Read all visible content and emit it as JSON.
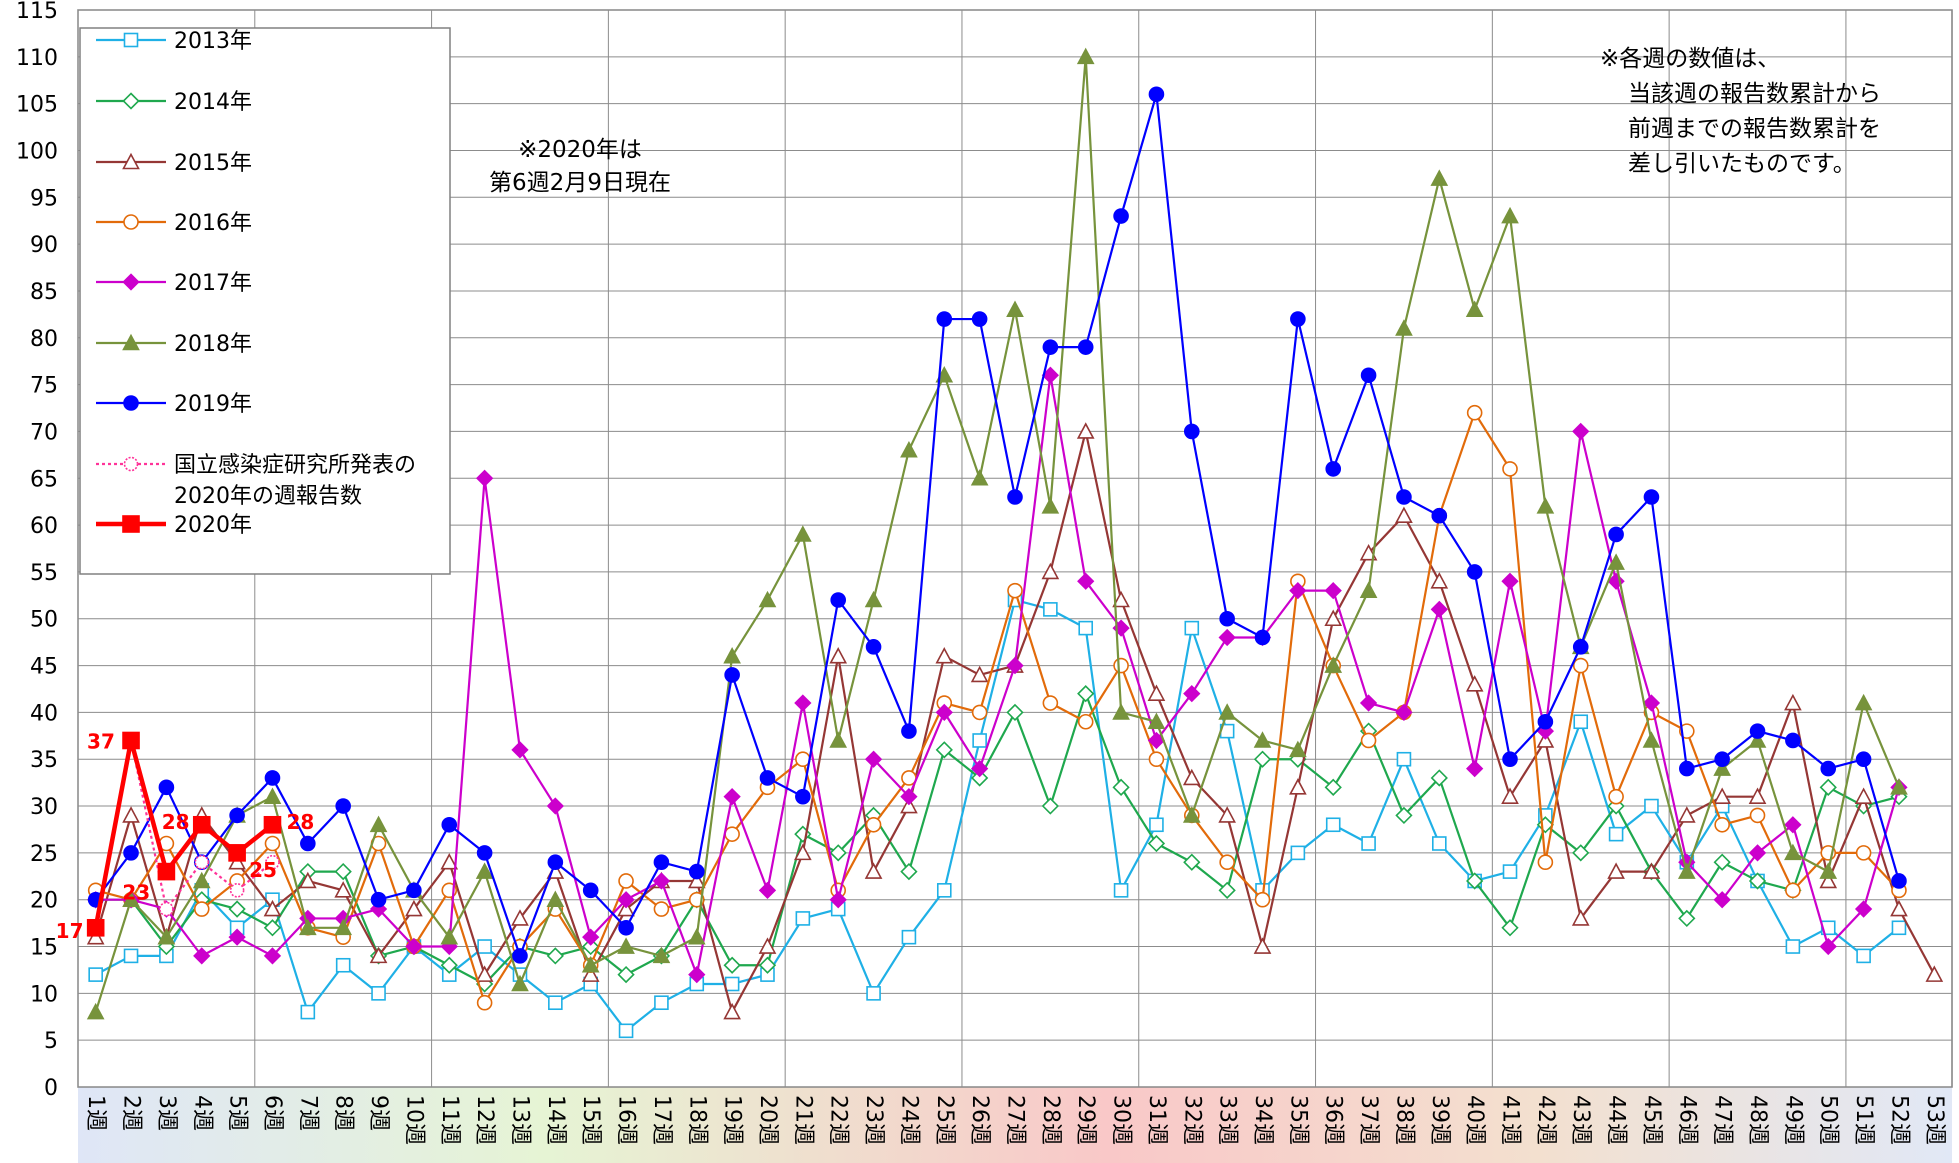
{
  "chart_data": {
    "type": "line",
    "title": "",
    "xlabel": "",
    "ylabel": "",
    "ylim": [
      0,
      115
    ],
    "ystep": 5,
    "grid": true,
    "legend_position": "top-left",
    "categories": [
      "1週",
      "2週",
      "3週",
      "4週",
      "5週",
      "6週",
      "7週",
      "8週",
      "9週",
      "10週",
      "11週",
      "12週",
      "13週",
      "14週",
      "15週",
      "16週",
      "17週",
      "18週",
      "19週",
      "20週",
      "21週",
      "22週",
      "23週",
      "24週",
      "25週",
      "26週",
      "27週",
      "28週",
      "29週",
      "30週",
      "31週",
      "32週",
      "33週",
      "34週",
      "35週",
      "36週",
      "37週",
      "38週",
      "39週",
      "40週",
      "41週",
      "42週",
      "43週",
      "44週",
      "45週",
      "46週",
      "47週",
      "48週",
      "49週",
      "50週",
      "51週",
      "52週",
      "53週"
    ],
    "series": [
      {
        "name": "2013年",
        "color": "#1fb0e6",
        "marker": "square-open",
        "values": [
          12,
          14,
          14,
          21,
          17,
          20,
          8,
          13,
          10,
          15,
          12,
          15,
          12,
          9,
          11,
          6,
          9,
          11,
          11,
          12,
          18,
          19,
          10,
          16,
          21,
          37,
          52,
          51,
          49,
          21,
          28,
          49,
          38,
          21,
          25,
          28,
          26,
          35,
          26,
          22,
          23,
          29,
          39,
          27,
          30,
          24,
          30,
          22,
          15,
          17,
          14,
          17,
          null
        ]
      },
      {
        "name": "2014年",
        "color": "#1fa84e",
        "marker": "diamond-open",
        "values": [
          20,
          20,
          15,
          20,
          19,
          17,
          23,
          23,
          14,
          15,
          13,
          11,
          15,
          14,
          15,
          12,
          14,
          20,
          13,
          13,
          27,
          25,
          29,
          23,
          36,
          33,
          40,
          30,
          42,
          32,
          26,
          24,
          21,
          35,
          35,
          32,
          38,
          29,
          33,
          22,
          17,
          28,
          25,
          30,
          23,
          18,
          24,
          22,
          21,
          32,
          30,
          31,
          null
        ]
      },
      {
        "name": "2015年",
        "color": "#953735",
        "marker": "triangle-open",
        "values": [
          16,
          29,
          16,
          29,
          24,
          19,
          22,
          21,
          14,
          19,
          24,
          12,
          18,
          23,
          12,
          19,
          22,
          22,
          8,
          15,
          25,
          46,
          23,
          30,
          46,
          44,
          45,
          55,
          70,
          52,
          42,
          33,
          29,
          15,
          32,
          50,
          57,
          61,
          54,
          43,
          31,
          37,
          18,
          23,
          23,
          29,
          31,
          31,
          41,
          22,
          31,
          19,
          12
        ]
      },
      {
        "name": "2016年",
        "color": "#e26b0a",
        "marker": "circle-open",
        "values": [
          21,
          20,
          26,
          19,
          22,
          26,
          17,
          16,
          26,
          15,
          21,
          9,
          15,
          19,
          13,
          22,
          19,
          20,
          27,
          32,
          35,
          21,
          28,
          33,
          41,
          40,
          53,
          41,
          39,
          45,
          35,
          29,
          24,
          20,
          54,
          45,
          37,
          40,
          61,
          72,
          66,
          24,
          45,
          31,
          40,
          38,
          28,
          29,
          21,
          25,
          25,
          21,
          null
        ]
      },
      {
        "name": "2017年",
        "color": "#cc00cc",
        "marker": "diamond",
        "values": [
          20,
          20,
          19,
          14,
          16,
          14,
          18,
          18,
          19,
          15,
          15,
          65,
          36,
          30,
          16,
          20,
          22,
          12,
          31,
          21,
          41,
          20,
          35,
          31,
          40,
          34,
          45,
          76,
          54,
          49,
          37,
          42,
          48,
          48,
          53,
          53,
          41,
          40,
          51,
          34,
          54,
          38,
          70,
          54,
          41,
          24,
          20,
          25,
          28,
          15,
          19,
          32,
          null
        ]
      },
      {
        "name": "2018年",
        "color": "#77933c",
        "marker": "triangle",
        "values": [
          8,
          20,
          16,
          22,
          29,
          31,
          17,
          17,
          28,
          21,
          16,
          23,
          11,
          20,
          13,
          15,
          14,
          16,
          46,
          52,
          59,
          37,
          52,
          68,
          76,
          65,
          83,
          62,
          110,
          40,
          39,
          29,
          40,
          37,
          36,
          45,
          53,
          81,
          97,
          83,
          93,
          62,
          47,
          56,
          37,
          23,
          34,
          37,
          25,
          23,
          41,
          32,
          null
        ]
      },
      {
        "name": "2019年",
        "color": "#0000ff",
        "marker": "circle",
        "values": [
          20,
          25,
          32,
          24,
          29,
          33,
          26,
          30,
          20,
          21,
          28,
          25,
          14,
          24,
          21,
          17,
          24,
          23,
          44,
          33,
          31,
          52,
          47,
          38,
          82,
          82,
          63,
          79,
          79,
          93,
          106,
          70,
          50,
          48,
          82,
          66,
          76,
          63,
          61,
          55,
          35,
          39,
          47,
          59,
          63,
          34,
          35,
          38,
          37,
          34,
          35,
          22,
          null
        ]
      },
      {
        "name": "国立感染症研究所発表の2020年の週報告数",
        "color": "#ff3399",
        "marker": "circle-dotted",
        "dashed": true,
        "values": [
          17,
          37,
          19,
          24,
          21,
          24,
          null,
          null,
          null,
          null,
          null,
          null,
          null,
          null,
          null,
          null,
          null,
          null,
          null,
          null,
          null,
          null,
          null,
          null,
          null,
          null,
          null,
          null,
          null,
          null,
          null,
          null,
          null,
          null,
          null,
          null,
          null,
          null,
          null,
          null,
          null,
          null,
          null,
          null,
          null,
          null,
          null,
          null,
          null,
          null,
          null,
          null,
          null
        ]
      },
      {
        "name": "2020年",
        "color": "#ff0000",
        "marker": "square",
        "bold": true,
        "values": [
          17,
          37,
          23,
          28,
          25,
          28,
          null,
          null,
          null,
          null,
          null,
          null,
          null,
          null,
          null,
          null,
          null,
          null,
          null,
          null,
          null,
          null,
          null,
          null,
          null,
          null,
          null,
          null,
          null,
          null,
          null,
          null,
          null,
          null,
          null,
          null,
          null,
          null,
          null,
          null,
          null,
          null,
          null,
          null,
          null,
          null,
          null,
          null,
          null,
          null,
          null,
          null,
          null
        ]
      }
    ],
    "legend_labels": [
      "2013年",
      "2014年",
      "2015年",
      "2016年",
      "2017年",
      "2018年",
      "2019年",
      "国立感染症研究所発表の",
      "2020年の週報告数",
      "2020年"
    ],
    "data_labels": [
      "17",
      "37",
      "23",
      "28",
      "25",
      "28"
    ],
    "annotations": {
      "note_2020_line1": "※2020年は",
      "note_2020_line2": "第6週2月9日現在",
      "note_right_line1": "※各週の数値は、",
      "note_right_line2": "当該週の報告数累計から",
      "note_right_line3": "前週までの報告数累計を",
      "note_right_line4": "差し引いたものです。"
    },
    "background_band_colors": [
      "#dfe6f7",
      "#e6f4d4",
      "#f9c8c8",
      "#f3e0cf",
      "#e1e8f6"
    ]
  }
}
